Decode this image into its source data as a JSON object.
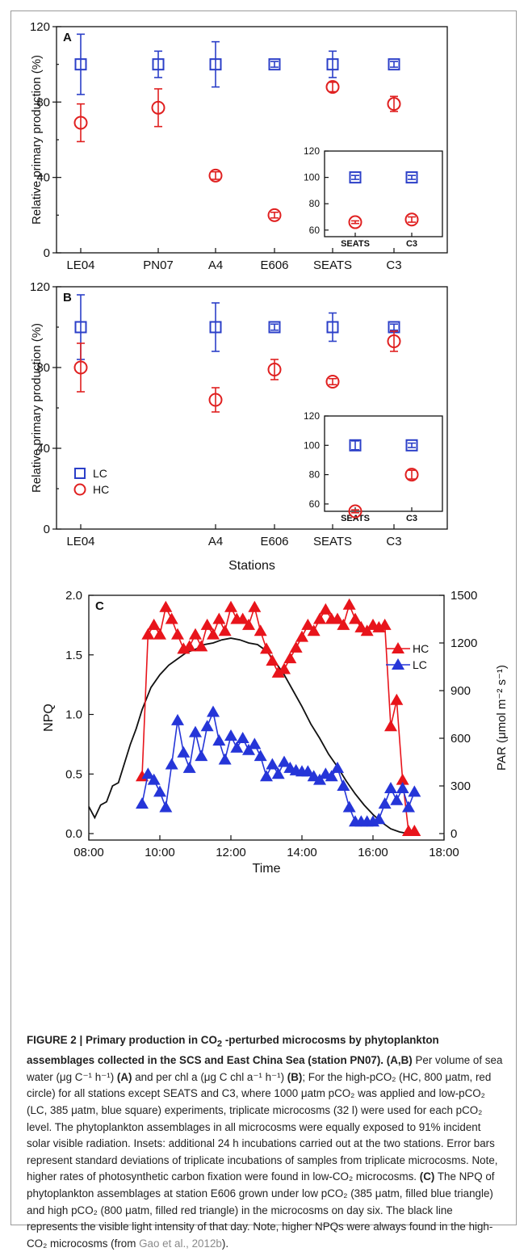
{
  "figure": {
    "panels": [
      {
        "id": "A",
        "panel_label": "A",
        "ylabel": "Relative primary production (%)",
        "xlabel": "",
        "yticks": [
          "0",
          "40",
          "80",
          "120"
        ],
        "inset_yticks": [
          "60",
          "80",
          "100",
          "120"
        ]
      },
      {
        "id": "B",
        "panel_label": "B",
        "ylabel": "Relative primary production (%)",
        "xlabel": "Stations",
        "yticks": [
          "0",
          "40",
          "80",
          "120"
        ],
        "inset_yticks": [
          "60",
          "80",
          "100",
          "120"
        ],
        "legend": [
          "LC",
          "HC"
        ]
      },
      {
        "id": "C",
        "panel_label": "C",
        "ylabel_left": "NPQ",
        "ylabel_right": "PAR (μmol m⁻² s⁻¹)",
        "xlabel": "Time",
        "xticks": [
          "08:00",
          "10:00",
          "12:00",
          "14:00",
          "16:00",
          "18:00"
        ],
        "yticks_left": [
          "0.0",
          "0.5",
          "1.0",
          "1.5",
          "2.0"
        ],
        "yticks_right": [
          "0",
          "300",
          "600",
          "900",
          "1200",
          "1500"
        ],
        "legend": [
          "HC",
          "LC"
        ]
      }
    ],
    "caption": {
      "label": "FIGURE 2 | ",
      "title_pre": "Primary production in CO",
      "title_sub": "2",
      "title_post": " -perturbed microcosms by phytoplankton assemblages collected in the SCS and East China Sea (station PN07).",
      "s1_bold": "(A,B)",
      "s1": " Per volume of sea water (μg C⁻¹ h⁻¹) ",
      "s2_bold": "(A)",
      "s2": " and per chl a (μg C chl a⁻¹ h⁻¹) ",
      "s3_bold": "(B)",
      "s3": "; For the high-pCO₂ (HC, 800 μatm, red circle) for all stations except SEATS and C3, where 1000 μatm pCO₂ was applied and low-pCO₂ (LC, 385 μatm, blue square) experiments, triplicate microcosms (32 l) were used for each pCO₂ level. The phytoplankton assemblages in all microcosms were equally exposed to 91% incident solar visible radiation. Insets: additional 24 h incubations carried out at the two stations. Error bars represent standard deviations of triplicate incubations of samples from triplicate microcosms. Note, higher rates of photosynthetic carbon fixation were found in low-CO₂ microcosms. ",
      "s4_bold": "(C)",
      "s4": " The NPQ of phytoplankton assemblages at station E606 grown under low pCO₂ (385 μatm, filled blue triangle) and high pCO₂ (800 μatm, filled red triangle) in the microcosms on day six. The black line represents the visible light intensity of that day. Note, higher NPQs were always found in the high-CO₂ microcosms (from ",
      "cite": "Gao et al., 2012b",
      "end": ")."
    }
  },
  "chart_data": [
    {
      "type": "scatter",
      "panel": "A",
      "ylabel": "Relative primary production (%)",
      "ylim": [
        0,
        120
      ],
      "categories": [
        "LE04",
        "PN07",
        "A4",
        "E606",
        "SEATS",
        "C3"
      ],
      "series": [
        {
          "name": "LC",
          "color": "#2b3fc8",
          "marker": "square",
          "values": [
            100,
            100,
            100,
            100,
            100,
            100
          ],
          "errors": [
            16,
            7,
            12,
            1.5,
            7,
            1.5
          ]
        },
        {
          "name": "HC",
          "color": "#e02020",
          "marker": "circle",
          "values": [
            69,
            77,
            41,
            20,
            88,
            79
          ],
          "errors": [
            10,
            10,
            2,
            1.5,
            2.5,
            4
          ]
        }
      ],
      "inset": {
        "categories": [
          "SEATS",
          "C3"
        ],
        "ylim": [
          55,
          120
        ],
        "series": [
          {
            "name": "LC",
            "values": [
              100,
              100
            ],
            "errors": [
              1.5,
              1.5
            ]
          },
          {
            "name": "HC",
            "values": [
              66,
              68
            ],
            "errors": [
              1,
              2
            ]
          }
        ]
      }
    },
    {
      "type": "scatter",
      "panel": "B",
      "xlabel": "Stations",
      "ylabel": "Relative primary production (%)",
      "ylim": [
        0,
        120
      ],
      "categories": [
        "LE04",
        "A4",
        "E606",
        "SEATS",
        "C3"
      ],
      "series": [
        {
          "name": "LC",
          "color": "#2b3fc8",
          "marker": "square",
          "values": [
            100,
            100,
            100,
            100,
            100
          ],
          "errors": [
            16,
            12,
            1.5,
            7,
            1.5
          ]
        },
        {
          "name": "HC",
          "color": "#e02020",
          "marker": "circle",
          "values": [
            80,
            64,
            79,
            73,
            93
          ],
          "errors": [
            12,
            6,
            5,
            1.5,
            5
          ]
        }
      ],
      "inset": {
        "categories": [
          "SEATS",
          "C3"
        ],
        "ylim": [
          55,
          120
        ],
        "series": [
          {
            "name": "LC",
            "values": [
              100,
              100
            ],
            "errors": [
              3,
              1.5
            ]
          },
          {
            "name": "HC",
            "values": [
              55,
              80
            ],
            "errors": [
              1,
              3
            ]
          }
        ]
      }
    },
    {
      "type": "line",
      "panel": "C",
      "xlabel": "Time",
      "ylabel": "NPQ",
      "ylabel_right": "PAR (μmol m⁻² s⁻¹)",
      "xlim": [
        "08:00",
        "18:00"
      ],
      "ylim": [
        0,
        2.0
      ],
      "ylim_right": [
        0,
        1500
      ],
      "series": [
        {
          "name": "HC",
          "color": "#e8141b",
          "marker": "triangle",
          "x": [
            "09:30",
            "09:40",
            "09:50",
            "10:00",
            "10:10",
            "10:20",
            "10:30",
            "10:40",
            "10:50",
            "11:00",
            "11:10",
            "11:20",
            "11:30",
            "11:40",
            "11:50",
            "12:00",
            "12:10",
            "12:20",
            "12:30",
            "12:40",
            "12:50",
            "13:00",
            "13:10",
            "13:20",
            "13:30",
            "13:40",
            "13:50",
            "14:00",
            "14:10",
            "14:20",
            "14:30",
            "14:40",
            "14:50",
            "15:00",
            "15:10",
            "15:20",
            "15:30",
            "15:40",
            "15:50",
            "16:00",
            "16:10",
            "16:20",
            "16:30",
            "16:40",
            "16:50",
            "17:00",
            "17:10"
          ],
          "y": [
            0.48,
            1.67,
            1.75,
            1.67,
            1.9,
            1.8,
            1.67,
            1.55,
            1.57,
            1.67,
            1.57,
            1.75,
            1.67,
            1.8,
            1.7,
            1.9,
            1.8,
            1.8,
            1.75,
            1.9,
            1.7,
            1.55,
            1.45,
            1.35,
            1.38,
            1.47,
            1.56,
            1.65,
            1.75,
            1.7,
            1.8,
            1.88,
            1.8,
            1.8,
            1.75,
            1.92,
            1.8,
            1.73,
            1.7,
            1.75,
            1.73,
            1.75,
            0.9,
            1.12,
            0.45,
            0.02,
            0.02
          ]
        },
        {
          "name": "LC",
          "color": "#2535d8",
          "marker": "triangle",
          "x": [
            "09:30",
            "09:40",
            "09:50",
            "10:00",
            "10:10",
            "10:20",
            "10:30",
            "10:40",
            "10:50",
            "11:00",
            "11:10",
            "11:20",
            "11:30",
            "11:40",
            "11:50",
            "12:00",
            "12:10",
            "12:20",
            "12:30",
            "12:40",
            "12:50",
            "13:00",
            "13:10",
            "13:20",
            "13:30",
            "13:40",
            "13:50",
            "14:00",
            "14:10",
            "14:20",
            "14:30",
            "14:40",
            "14:50",
            "15:00",
            "15:10",
            "15:20",
            "15:30",
            "15:40",
            "15:50",
            "16:00",
            "16:10",
            "16:20",
            "16:30",
            "16:40",
            "16:50",
            "17:00",
            "17:10"
          ],
          "y": [
            0.25,
            0.5,
            0.45,
            0.35,
            0.22,
            0.58,
            0.95,
            0.68,
            0.55,
            0.85,
            0.65,
            0.9,
            1.02,
            0.78,
            0.62,
            0.82,
            0.72,
            0.8,
            0.7,
            0.75,
            0.65,
            0.48,
            0.58,
            0.5,
            0.6,
            0.55,
            0.53,
            0.52,
            0.52,
            0.48,
            0.45,
            0.5,
            0.48,
            0.55,
            0.4,
            0.22,
            0.1,
            0.1,
            0.1,
            0.1,
            0.12,
            0.25,
            0.38,
            0.28,
            0.38,
            0.22,
            0.35
          ]
        },
        {
          "name": "PAR",
          "color": "#111111",
          "marker": "none",
          "axis": "right",
          "x": [
            "08:00",
            "08:10",
            "08:20",
            "08:30",
            "08:40",
            "08:50",
            "09:00",
            "09:10",
            "09:20",
            "09:30",
            "09:45",
            "10:00",
            "10:15",
            "10:30",
            "10:45",
            "11:00",
            "11:15",
            "11:30",
            "11:45",
            "12:00",
            "12:15",
            "12:30",
            "12:45",
            "13:00",
            "13:15",
            "13:30",
            "13:45",
            "14:00",
            "14:15",
            "14:30",
            "14:45",
            "15:00",
            "15:15",
            "15:30",
            "15:45",
            "16:00",
            "16:15",
            "16:30",
            "16:45",
            "17:00"
          ],
          "y": [
            170,
            100,
            180,
            200,
            300,
            320,
            440,
            560,
            660,
            780,
            920,
            1000,
            1060,
            1100,
            1140,
            1160,
            1190,
            1200,
            1220,
            1230,
            1220,
            1200,
            1190,
            1150,
            1080,
            1000,
            900,
            800,
            690,
            600,
            500,
            420,
            330,
            250,
            180,
            120,
            70,
            30,
            10,
            0
          ]
        }
      ]
    }
  ]
}
